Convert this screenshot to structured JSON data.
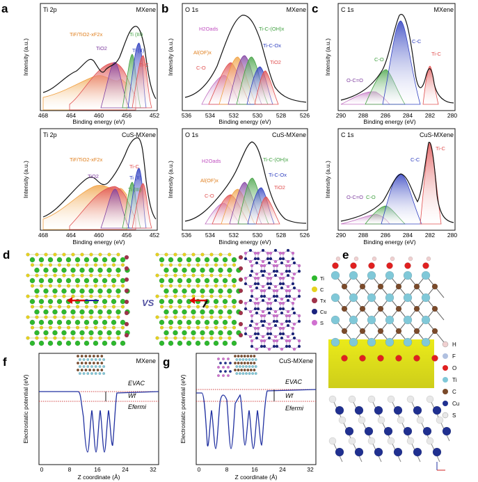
{
  "panels": {
    "a": {
      "letter": "a",
      "top": {
        "title": "Ti 2p",
        "sample": "MXene",
        "labels": [
          "TiF/TiO2-xF2x",
          "TiO2",
          "Ti (III)",
          "Ti (II)",
          "Ti-C"
        ]
      },
      "bottom": {
        "title": "Ti 2p",
        "sample": "CuS-MXene",
        "labels": [
          "TiF/TiO2-xF2x",
          "TiO2",
          "Ti-C",
          "Ti (II)",
          "Ti (III)"
        ]
      },
      "xticks": [
        "468",
        "464",
        "460",
        "456",
        "452"
      ],
      "xlabel": "Binding energy (eV)",
      "ylabel": "Intensity (a.u.)"
    },
    "b": {
      "letter": "b",
      "top": {
        "title": "O 1s",
        "sample": "MXene",
        "labels": [
          "H2Oads",
          "Al(OF)x",
          "C-O",
          "Ti-C-(OH)x",
          "Ti-C-Ox",
          "TiO2"
        ]
      },
      "bottom": {
        "title": "O 1s",
        "sample": "CuS-MXene",
        "labels": [
          "H2Oads",
          "Al(OF)x",
          "C-O",
          "Ti-C-(OH)x",
          "Ti-C-Ox",
          "TiO2"
        ]
      },
      "xticks": [
        "536",
        "534",
        "532",
        "530",
        "528",
        "526"
      ],
      "xlabel": "Binding energy (eV)",
      "ylabel": "Intensity (a.u.)"
    },
    "c": {
      "letter": "c",
      "top": {
        "title": "C 1s",
        "sample": "MXene",
        "labels": [
          "C-C",
          "C-O",
          "Ti-C",
          "O-C=O"
        ]
      },
      "bottom": {
        "title": "C 1s",
        "sample": "CuS-MXene",
        "labels": [
          "C-C",
          "Ti-C",
          "O-C=O",
          "C-O"
        ]
      },
      "xticks": [
        "290",
        "288",
        "286",
        "284",
        "282",
        "280"
      ],
      "xlabel": "Binding energy (eV)",
      "ylabel": "Intensity (a.u.)"
    },
    "d": {
      "letter": "d",
      "vs": "VS",
      "legend": [
        "Ti",
        "C",
        "Tx",
        "Cu",
        "S"
      ]
    },
    "e": {
      "letter": "e",
      "legend": [
        "H",
        "F",
        "O",
        "Ti",
        "C",
        "Cu",
        "S"
      ]
    },
    "f": {
      "letter": "f",
      "sample": "MXene",
      "evac": "EVAC",
      "wf": "Wf",
      "efermi": "Efermi",
      "xticks": [
        "0",
        "8",
        "16",
        "24",
        "32"
      ],
      "xlabel": "Z coordinate (Å)",
      "ylabel": "Electrostatic potential (eV)"
    },
    "g": {
      "letter": "g",
      "sample": "CuS-MXene",
      "evac": "EVAC",
      "wf": "Wf",
      "efermi": "Efermi",
      "xticks": [
        "0",
        "8",
        "16",
        "24",
        "32"
      ],
      "xlabel": "Z coordinate (Å)",
      "ylabel": "Electrostatic potential (eV)"
    }
  },
  "colors": {
    "ti": "#2eb82e",
    "c": "#e6d21e",
    "tx": "#a0324a",
    "cu": "#1a237e",
    "s": "#d070d0",
    "peak_red": "#e05050",
    "peak_orange": "#f0a040",
    "peak_purple": "#8040a0",
    "peak_green": "#40a040",
    "peak_blue": "#3040c0",
    "peak_pink": "#c070c0",
    "cc_blue": "#5060c0",
    "co_green": "#50a050",
    "tic_red": "#e04040"
  }
}
